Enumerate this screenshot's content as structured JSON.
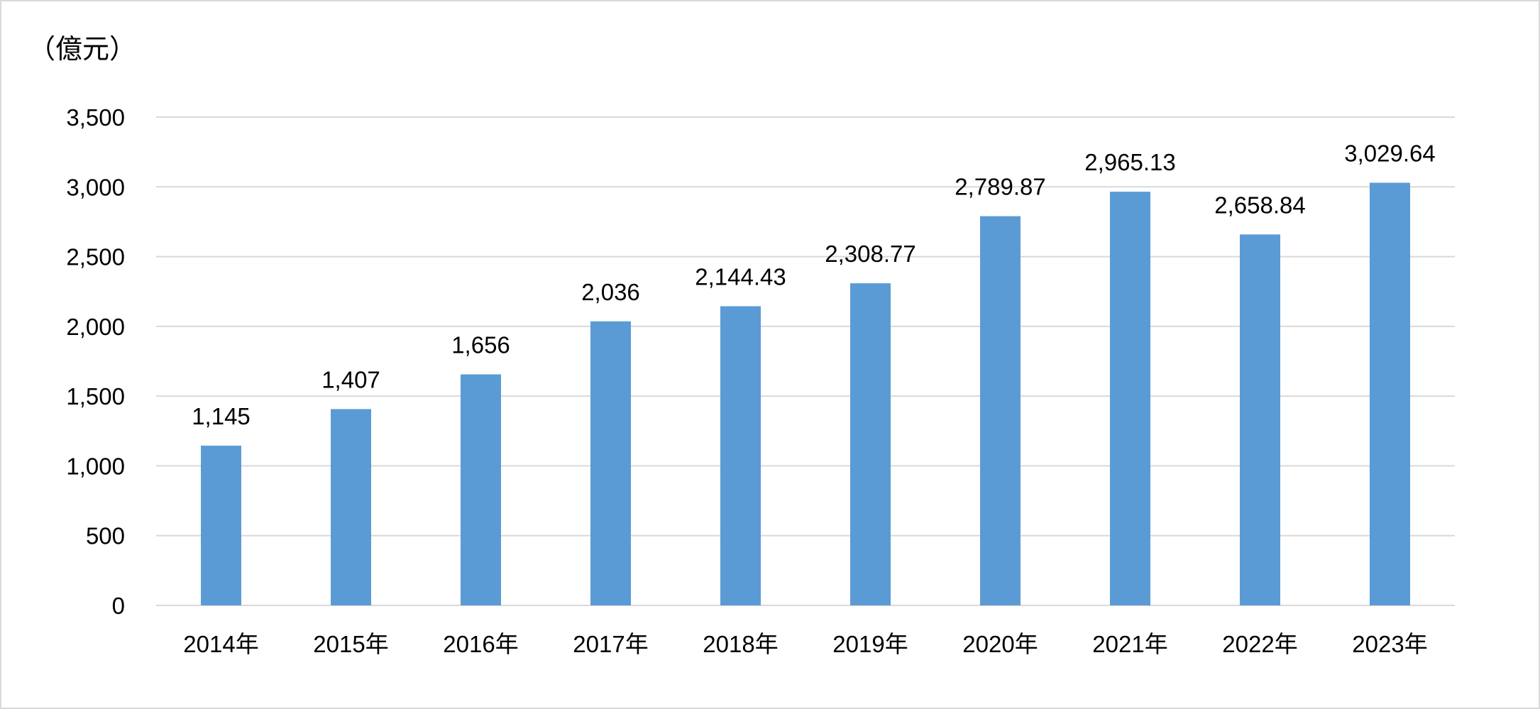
{
  "chart_data": {
    "type": "bar",
    "unit_label": "（億元）",
    "categories": [
      "2014年",
      "2015年",
      "2016年",
      "2017年",
      "2018年",
      "2019年",
      "2020年",
      "2021年",
      "2022年",
      "2023年"
    ],
    "values": [
      1145,
      1407,
      1656,
      2036,
      2144.43,
      2308.77,
      2789.87,
      2965.13,
      2658.84,
      3029.64
    ],
    "value_labels": [
      "1,145",
      "1,407",
      "1,656",
      "2,036",
      "2,144.43",
      "2,308.77",
      "2,789.87",
      "2,965.13",
      "2,658.84",
      "3,029.64"
    ],
    "yticks": [
      0,
      500,
      1000,
      1500,
      2000,
      2500,
      3000,
      3500
    ],
    "ytick_labels": [
      "0",
      "500",
      "1,000",
      "1,500",
      "2,000",
      "2,500",
      "3,000",
      "3,500"
    ],
    "ylim": [
      0,
      3500
    ],
    "grid": true,
    "legend": false,
    "colors": {
      "bar": "#5b9bd5",
      "grid": "#d9d9d9"
    }
  }
}
